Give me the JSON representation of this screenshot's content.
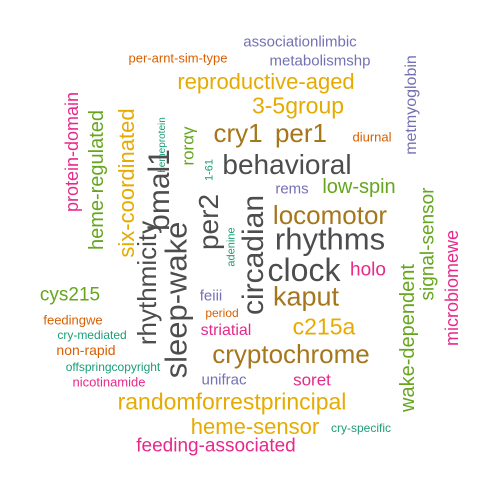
{
  "palette": {
    "teal": "#1b9e77",
    "orange": "#d95f02",
    "purple": "#7570b3",
    "magenta": "#e7298a",
    "green": "#66a61e",
    "gold": "#e6ab02",
    "brown": "#a6761d",
    "gray": "#4d4d4d"
  },
  "words": [
    {
      "text": "associationlimbic",
      "color": "#7570b3"
    },
    {
      "text": "per-arnt-sim-type",
      "color": "#d95f02"
    },
    {
      "text": "metabolismshp",
      "color": "#7570b3"
    },
    {
      "text": "reproductive-aged",
      "color": "#e6ab02"
    },
    {
      "text": "3-5group",
      "color": "#e6ab02"
    },
    {
      "text": "cry1",
      "color": "#a6761d"
    },
    {
      "text": "per1",
      "color": "#a6761d"
    },
    {
      "text": "diurnal",
      "color": "#d95f02"
    },
    {
      "text": "behavioral",
      "color": "#4d4d4d"
    },
    {
      "text": "rems",
      "color": "#7570b3"
    },
    {
      "text": "low-spin",
      "color": "#66a61e"
    },
    {
      "text": "locomotor",
      "color": "#a6761d"
    },
    {
      "text": "rhythms",
      "color": "#4d4d4d"
    },
    {
      "text": "clock",
      "color": "#4d4d4d"
    },
    {
      "text": "holo",
      "color": "#e7298a"
    },
    {
      "text": "kaput",
      "color": "#a6761d"
    },
    {
      "text": "cys215",
      "color": "#66a61e"
    },
    {
      "text": "feiii",
      "color": "#7570b3"
    },
    {
      "text": "period",
      "color": "#d95f02"
    },
    {
      "text": "c215a",
      "color": "#e6ab02"
    },
    {
      "text": "feedingwe",
      "color": "#d95f02"
    },
    {
      "text": "cry-mediated",
      "color": "#1b9e77"
    },
    {
      "text": "striatial",
      "color": "#e7298a"
    },
    {
      "text": "non-rapid",
      "color": "#d95f02"
    },
    {
      "text": "cryptochrome",
      "color": "#a6761d"
    },
    {
      "text": "offspringcopyright",
      "color": "#1b9e77"
    },
    {
      "text": "unifrac",
      "color": "#7570b3"
    },
    {
      "text": "nicotinamide",
      "color": "#e7298a"
    },
    {
      "text": "soret",
      "color": "#e7298a"
    },
    {
      "text": "randomforrestprincipal",
      "color": "#e6ab02"
    },
    {
      "text": "heme-sensor",
      "color": "#e6ab02"
    },
    {
      "text": "cry-specific",
      "color": "#1b9e77"
    },
    {
      "text": "feeding-associated",
      "color": "#e7298a"
    },
    {
      "text": "protein-domain",
      "color": "#e7298a"
    },
    {
      "text": "heme-regulated",
      "color": "#66a61e"
    },
    {
      "text": "six-coordinated",
      "color": "#e6ab02"
    },
    {
      "text": "rhythmicity",
      "color": "#4d4d4d"
    },
    {
      "text": "hemeprotein",
      "color": "#1b9e77"
    },
    {
      "text": "rorαγ",
      "color": "#66a61e"
    },
    {
      "text": "1-61",
      "color": "#1b9e77"
    },
    {
      "text": "bmal1",
      "color": "#4d4d4d"
    },
    {
      "text": "sleep-wake",
      "color": "#4d4d4d"
    },
    {
      "text": "per2",
      "color": "#4d4d4d"
    },
    {
      "text": "adenine",
      "color": "#1b9e77"
    },
    {
      "text": "circadian",
      "color": "#4d4d4d"
    },
    {
      "text": "metmyoglobin",
      "color": "#7570b3"
    },
    {
      "text": "signal-sensor",
      "color": "#66a61e"
    },
    {
      "text": "wake-dependent",
      "color": "#66a61e"
    },
    {
      "text": "microbiomewe",
      "color": "#e7298a"
    }
  ]
}
